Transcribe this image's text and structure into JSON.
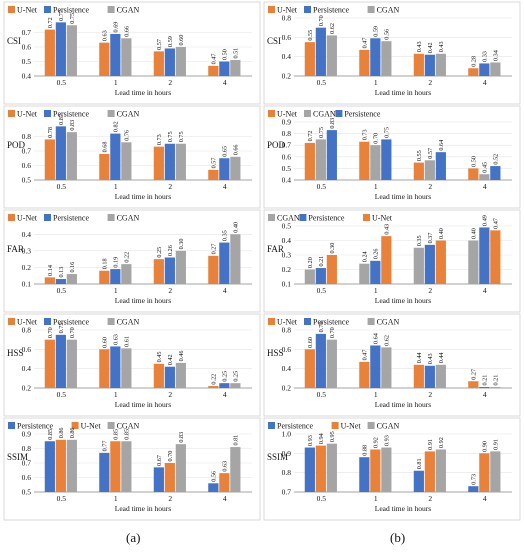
{
  "colors": {
    "U-Net": "#E8813A",
    "Persistence": "#4472C4",
    "CGAN": "#A5A5A5"
  },
  "column_labels": [
    "(a)",
    "(b)"
  ],
  "chart_data": [
    {
      "type": "bar",
      "metric": "CSI",
      "categories": [
        "0.5",
        "1",
        "2",
        "4"
      ],
      "xlabel": "Lead time in hours",
      "ylim": [
        0.4,
        0.8
      ],
      "yticks": [
        0.4,
        0.5,
        0.6,
        0.7
      ],
      "series": [
        {
          "name": "U-Net",
          "values": [
            0.72,
            0.63,
            0.57,
            0.47
          ]
        },
        {
          "name": "Persistence",
          "values": [
            0.77,
            0.69,
            0.59,
            0.5
          ]
        },
        {
          "name": "CGAN",
          "values": [
            0.75,
            0.66,
            0.6,
            0.51
          ]
        }
      ],
      "legend_order": [
        "U-Net",
        "Persistence",
        "CGAN"
      ]
    },
    {
      "type": "bar",
      "metric": "CSI",
      "categories": [
        "0.5",
        "1",
        "2",
        "4"
      ],
      "xlabel": "Lead time in hours",
      "ylim": [
        0.2,
        0.8
      ],
      "yticks": [
        0.2,
        0.4,
        0.6,
        0.8
      ],
      "series": [
        {
          "name": "U-Net",
          "values": [
            0.55,
            0.47,
            0.43,
            0.28
          ]
        },
        {
          "name": "Persistence",
          "values": [
            0.7,
            0.59,
            0.42,
            0.33
          ]
        },
        {
          "name": "CGAN",
          "values": [
            0.62,
            0.56,
            0.43,
            0.34
          ]
        }
      ],
      "legend_order": [
        "U-Net",
        "Persistence",
        "CGAN"
      ]
    },
    {
      "type": "bar",
      "metric": "POD",
      "categories": [
        "0.5",
        "1",
        "2",
        "4"
      ],
      "xlabel": "Lead time in hours",
      "ylim": [
        0.5,
        0.9
      ],
      "yticks": [
        0.5,
        0.6,
        0.7,
        0.8
      ],
      "series": [
        {
          "name": "U-Net",
          "values": [
            0.78,
            0.68,
            0.73,
            0.57
          ]
        },
        {
          "name": "Persistence",
          "values": [
            0.87,
            0.82,
            0.75,
            0.65
          ]
        },
        {
          "name": "CGAN",
          "values": [
            0.83,
            0.76,
            0.75,
            0.66
          ]
        }
      ],
      "legend_order": [
        "U-Net",
        "Persistence",
        "CGAN"
      ]
    },
    {
      "type": "bar",
      "metric": "POD",
      "categories": [
        "0.5",
        "1",
        "2",
        "4"
      ],
      "xlabel": "Lead time in hours",
      "ylim": [
        0.4,
        0.9
      ],
      "yticks": [
        0.4,
        0.5,
        0.6,
        0.7,
        0.8,
        0.9
      ],
      "series": [
        {
          "name": "U-Net",
          "values": [
            0.72,
            0.73,
            0.55,
            0.5
          ]
        },
        {
          "name": "CGAN",
          "values": [
            0.75,
            0.7,
            0.57,
            0.45
          ]
        },
        {
          "name": "Persistence",
          "values": [
            0.83,
            0.75,
            0.64,
            0.52
          ]
        }
      ],
      "legend_order": [
        "U-Net",
        "CGAN",
        "Persistence"
      ]
    },
    {
      "type": "bar",
      "metric": "FAR",
      "categories": [
        "0.5",
        "1",
        "2",
        "4"
      ],
      "xlabel": "Lead time in hours",
      "ylim": [
        0.1,
        0.45
      ],
      "yticks": [
        0.1,
        0.2,
        0.3,
        0.4
      ],
      "series": [
        {
          "name": "U-Net",
          "values": [
            0.14,
            0.18,
            0.25,
            0.27
          ]
        },
        {
          "name": "Persistence",
          "values": [
            0.13,
            0.19,
            0.26,
            0.35
          ]
        },
        {
          "name": "CGAN",
          "values": [
            0.16,
            0.22,
            0.3,
            0.4
          ]
        }
      ],
      "legend_order": [
        "U-Net",
        "Persistence",
        "CGAN"
      ]
    },
    {
      "type": "bar",
      "metric": "FAR",
      "categories": [
        "0.5",
        "1",
        "2",
        "4"
      ],
      "xlabel": "Lead time in hours",
      "ylim": [
        0.1,
        0.5
      ],
      "yticks": [
        0.1,
        0.2,
        0.3,
        0.4,
        0.5
      ],
      "series": [
        {
          "name": "CGAN",
          "values": [
            0.2,
            0.24,
            0.35,
            0.4
          ]
        },
        {
          "name": "Persistence",
          "values": [
            0.21,
            0.26,
            0.37,
            0.49
          ]
        },
        {
          "name": "U-Net",
          "values": [
            0.3,
            0.43,
            0.4,
            0.47
          ]
        }
      ],
      "legend_order": [
        "CGAN",
        "Persistence",
        "U-Net"
      ]
    },
    {
      "type": "bar",
      "metric": "HSS",
      "categories": [
        "0.5",
        "1",
        "2",
        "4"
      ],
      "xlabel": "Lead time in hours",
      "ylim": [
        0.2,
        0.8
      ],
      "yticks": [
        0.2,
        0.4,
        0.6,
        0.8
      ],
      "series": [
        {
          "name": "U-Net",
          "values": [
            0.7,
            0.6,
            0.45,
            0.22
          ]
        },
        {
          "name": "Persistence",
          "values": [
            0.75,
            0.63,
            0.42,
            0.25
          ]
        },
        {
          "name": "CGAN",
          "values": [
            0.7,
            0.61,
            0.46,
            0.25
          ]
        }
      ],
      "legend_order": [
        "U-Net",
        "Persistence",
        "CGAN"
      ]
    },
    {
      "type": "bar",
      "metric": "HSS",
      "categories": [
        "0.5",
        "1",
        "2",
        "4"
      ],
      "xlabel": "Lead time in hours",
      "ylim": [
        0.2,
        0.8
      ],
      "yticks": [
        0.2,
        0.4,
        0.6,
        0.8
      ],
      "series": [
        {
          "name": "U-Net",
          "values": [
            0.6,
            0.47,
            0.44,
            0.27
          ]
        },
        {
          "name": "Persistence",
          "values": [
            0.76,
            0.64,
            0.43,
            0.21
          ]
        },
        {
          "name": "CGAN",
          "values": [
            0.7,
            0.62,
            0.44,
            0.21
          ]
        }
      ],
      "legend_order": [
        "U-Net",
        "Persistence",
        "CGAN"
      ]
    },
    {
      "type": "bar",
      "metric": "SSIM",
      "categories": [
        "0.5",
        "1",
        "2",
        "4"
      ],
      "xlabel": "Lead time in hours",
      "ylim": [
        0.5,
        0.9
      ],
      "yticks": [
        0.5,
        0.6,
        0.7,
        0.8,
        0.9
      ],
      "series": [
        {
          "name": "Persistence",
          "values": [
            0.85,
            0.77,
            0.67,
            0.56
          ]
        },
        {
          "name": "U-Net",
          "values": [
            0.86,
            0.85,
            0.7,
            0.63
          ]
        },
        {
          "name": "CGAN",
          "values": [
            0.86,
            0.85,
            0.83,
            0.81
          ]
        }
      ],
      "legend_order": [
        "Persistence",
        "U-Net",
        "CGAN"
      ]
    },
    {
      "type": "bar",
      "metric": "SSIM",
      "categories": [
        "0.5",
        "1",
        "2",
        "4"
      ],
      "xlabel": "Lead time in hours",
      "ylim": [
        0.7,
        1.0
      ],
      "yticks": [
        0.7,
        0.8,
        0.9,
        1.0
      ],
      "series": [
        {
          "name": "Persistence",
          "values": [
            0.93,
            0.88,
            0.81,
            0.73
          ]
        },
        {
          "name": "U-Net",
          "values": [
            0.94,
            0.92,
            0.91,
            0.9
          ]
        },
        {
          "name": "CGAN",
          "values": [
            0.95,
            0.93,
            0.92,
            0.91
          ]
        }
      ],
      "legend_order": [
        "Persistence",
        "U-Net",
        "CGAN"
      ]
    }
  ]
}
